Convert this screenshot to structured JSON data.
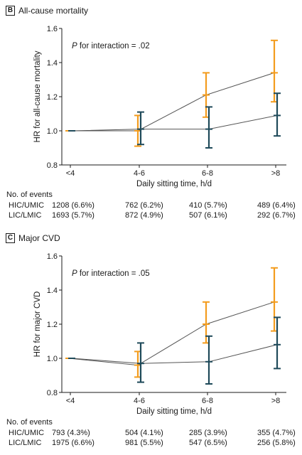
{
  "colors": {
    "hic": "#F39C1E",
    "lic": "#1F4A5A",
    "line": "#555555",
    "axis": "#1a1a1a"
  },
  "panels": [
    {
      "letter": "B",
      "title": "All-cause mortality",
      "annotation": "P for interaction = .02",
      "events_heading": "No. of events",
      "events": [
        {
          "label": "HIC/UMIC",
          "values": [
            "1208 (6.6%)",
            "762 (6.2%)",
            "410 (5.7%)",
            "489 (6.4%)"
          ]
        },
        {
          "label": "LIC/LMIC",
          "values": [
            "1693 (5.7%)",
            "872 (4.9%)",
            "507 (6.1%)",
            "292 (6.7%)"
          ]
        }
      ]
    },
    {
      "letter": "C",
      "title": "Major CVD",
      "annotation": "P for interaction = .05",
      "events_heading": "No. of events",
      "events": [
        {
          "label": "HIC/UMIC",
          "values": [
            "793 (4.3%)",
            "504 (4.1%)",
            "285 (3.9%)",
            "355 (4.7%)"
          ]
        },
        {
          "label": "LIC/LMIC",
          "values": [
            "1975 (6.6%)",
            "981 (5.5%)",
            "547 (6.5%)",
            "256 (5.8%)"
          ]
        }
      ]
    }
  ],
  "chart_data": [
    {
      "type": "line",
      "title": "All-cause mortality",
      "xlabel": "Daily sitting time, h/d",
      "ylabel": "HR for all-cause mortality",
      "categories": [
        "<4",
        "4-6",
        "6-8",
        ">8"
      ],
      "ylim": [
        0.8,
        1.6
      ],
      "yticks": [
        "0.8",
        "1.0",
        "1.2",
        "1.4",
        "1.6"
      ],
      "grid": false,
      "series": [
        {
          "group": "hic",
          "values": [
            1.0,
            1.0,
            1.21,
            1.34
          ],
          "lower": [
            1.0,
            0.91,
            1.08,
            1.17
          ],
          "upper": [
            1.0,
            1.09,
            1.34,
            1.53
          ]
        },
        {
          "group": "lic",
          "values": [
            1.0,
            1.01,
            1.01,
            1.09
          ],
          "lower": [
            1.0,
            0.92,
            0.9,
            0.97
          ],
          "upper": [
            1.0,
            1.11,
            1.14,
            1.22
          ]
        }
      ]
    },
    {
      "type": "line",
      "title": "Major CVD",
      "xlabel": "Daily sitting time, h/d",
      "ylabel": "HR for major CVD",
      "categories": [
        "<4",
        "4-6",
        "6-8",
        ">8"
      ],
      "ylim": [
        0.8,
        1.6
      ],
      "yticks": [
        "0.8",
        "1.0",
        "1.2",
        "1.4",
        "1.6"
      ],
      "grid": false,
      "series": [
        {
          "group": "hic",
          "values": [
            1.0,
            0.96,
            1.2,
            1.33
          ],
          "lower": [
            1.0,
            0.89,
            1.09,
            1.16
          ],
          "upper": [
            1.0,
            1.04,
            1.33,
            1.53
          ]
        },
        {
          "group": "lic",
          "values": [
            1.0,
            0.97,
            0.98,
            1.08
          ],
          "lower": [
            1.0,
            0.86,
            0.85,
            0.94
          ],
          "upper": [
            1.0,
            1.09,
            1.13,
            1.24
          ]
        }
      ]
    }
  ]
}
